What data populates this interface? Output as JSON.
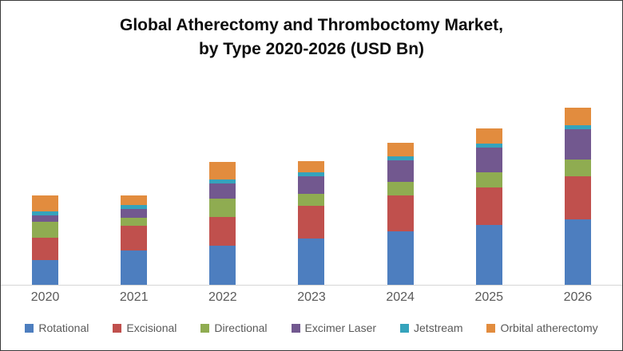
{
  "page": {
    "background_color": "#ffffff",
    "border_color": "#3a3a3a"
  },
  "chart": {
    "title_line1": "Global Atherectomy and Thromboctomy Market,",
    "title_line2": "by Type 2020-2026 (USD Bn)"
  },
  "axis": {
    "line_color": "#d6d6d6",
    "label_color": "#595959"
  },
  "chart_data": {
    "type": "bar",
    "stacked": true,
    "title": "Global Atherectomy and Thromboctomy Market, by Type 2020-2026 (USD Bn)",
    "xlabel": "",
    "ylabel": "",
    "units": "USD Bn",
    "values_estimated": true,
    "y_axis_visible": false,
    "gridlines": false,
    "legend_position": "bottom",
    "ylim": [
      0,
      2.35
    ],
    "categories": [
      "2020",
      "2021",
      "2022",
      "2023",
      "2024",
      "2025",
      "2026"
    ],
    "series": [
      {
        "name": "Rotational",
        "color": "#4D7EBF",
        "values": [
          0.31,
          0.43,
          0.49,
          0.58,
          0.67,
          0.75,
          0.82
        ]
      },
      {
        "name": "Excisional",
        "color": "#C0504D",
        "values": [
          0.28,
          0.31,
          0.36,
          0.41,
          0.45,
          0.47,
          0.54
        ]
      },
      {
        "name": "Directional",
        "color": "#8FAC51",
        "values": [
          0.2,
          0.1,
          0.23,
          0.15,
          0.17,
          0.19,
          0.21
        ]
      },
      {
        "name": "Excimer Laser",
        "color": "#72588F",
        "values": [
          0.08,
          0.11,
          0.19,
          0.22,
          0.27,
          0.31,
          0.38
        ]
      },
      {
        "name": "Jetstream",
        "color": "#35A3BC",
        "values": [
          0.05,
          0.05,
          0.05,
          0.05,
          0.05,
          0.05,
          0.05
        ]
      },
      {
        "name": "Orbital atherectomy",
        "color": "#E28C3E",
        "values": [
          0.2,
          0.12,
          0.22,
          0.14,
          0.17,
          0.19,
          0.22
        ]
      }
    ]
  }
}
